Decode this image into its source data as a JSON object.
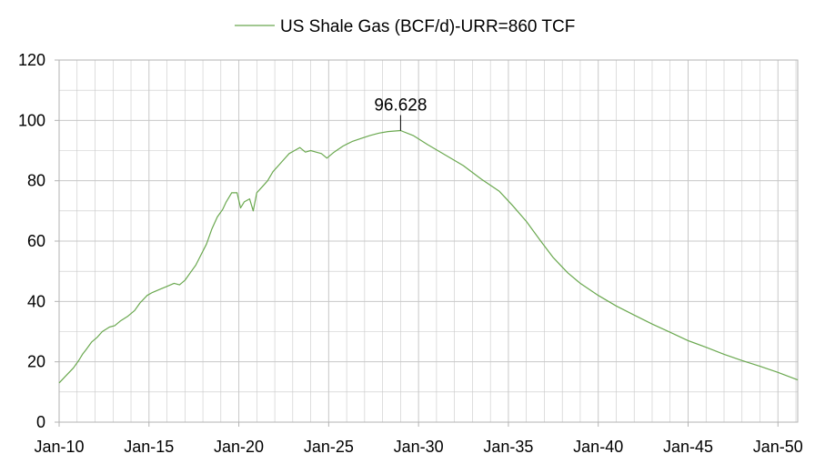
{
  "chart_data": {
    "type": "line",
    "title": "",
    "xlabel": "",
    "ylabel": "",
    "legend": {
      "position": "top-center",
      "label": "US Shale Gas (BCF/d)-URR=860 TCF"
    },
    "grid": true,
    "colors": {
      "series": "#6aa84f",
      "grid": "#c8c8c8",
      "axis": "#b3b3b3"
    },
    "x_ticks": [
      "Jan-10",
      "Jan-15",
      "Jan-20",
      "Jan-25",
      "Jan-30",
      "Jan-35",
      "Jan-40",
      "Jan-45",
      "Jan-50"
    ],
    "x_tick_years": [
      2010,
      2015,
      2020,
      2025,
      2030,
      2035,
      2040,
      2045,
      2050
    ],
    "xlim": [
      2010,
      2051.1
    ],
    "y_ticks": [
      "0",
      "20",
      "40",
      "60",
      "80",
      "100",
      "120"
    ],
    "ylim": [
      0,
      120
    ],
    "peak_annotation": {
      "label": "96.628",
      "x": 2029.0,
      "y": 96.628
    },
    "series": [
      {
        "name": "US Shale Gas (BCF/d)-URR=860 TCF",
        "points": [
          [
            2010.0,
            13.0
          ],
          [
            2010.4,
            15.5
          ],
          [
            2010.8,
            18.0
          ],
          [
            2011.1,
            20.5
          ],
          [
            2011.3,
            22.5
          ],
          [
            2011.5,
            24.0
          ],
          [
            2011.8,
            26.5
          ],
          [
            2012.1,
            28.0
          ],
          [
            2012.4,
            30.0
          ],
          [
            2012.8,
            31.5
          ],
          [
            2013.1,
            32.0
          ],
          [
            2013.4,
            33.5
          ],
          [
            2013.8,
            35.0
          ],
          [
            2014.2,
            37.0
          ],
          [
            2014.5,
            39.5
          ],
          [
            2014.9,
            42.0
          ],
          [
            2015.2,
            43.0
          ],
          [
            2015.6,
            44.0
          ],
          [
            2016.0,
            45.0
          ],
          [
            2016.4,
            46.0
          ],
          [
            2016.7,
            45.5
          ],
          [
            2017.0,
            47.0
          ],
          [
            2017.3,
            49.5
          ],
          [
            2017.6,
            52.0
          ],
          [
            2017.9,
            55.5
          ],
          [
            2018.2,
            59.0
          ],
          [
            2018.5,
            64.0
          ],
          [
            2018.8,
            68.0
          ],
          [
            2019.1,
            70.5
          ],
          [
            2019.3,
            73.0
          ],
          [
            2019.6,
            76.0
          ],
          [
            2019.9,
            76.0
          ],
          [
            2020.1,
            71.0
          ],
          [
            2020.3,
            73.0
          ],
          [
            2020.6,
            74.0
          ],
          [
            2020.8,
            70.0
          ],
          [
            2021.0,
            76.0
          ],
          [
            2021.3,
            78.0
          ],
          [
            2021.6,
            80.0
          ],
          [
            2021.9,
            83.0
          ],
          [
            2022.2,
            85.0
          ],
          [
            2022.5,
            87.0
          ],
          [
            2022.8,
            89.0
          ],
          [
            2023.1,
            90.0
          ],
          [
            2023.4,
            91.0
          ],
          [
            2023.7,
            89.5
          ],
          [
            2024.0,
            90.0
          ],
          [
            2024.3,
            89.5
          ],
          [
            2024.6,
            89.0
          ],
          [
            2024.9,
            87.5
          ],
          [
            2025.3,
            89.5
          ],
          [
            2025.8,
            91.5
          ],
          [
            2026.3,
            93.0
          ],
          [
            2026.8,
            94.0
          ],
          [
            2027.3,
            95.0
          ],
          [
            2027.8,
            95.8
          ],
          [
            2028.3,
            96.3
          ],
          [
            2029.0,
            96.628
          ],
          [
            2029.7,
            95.0
          ],
          [
            2030.5,
            92.0
          ],
          [
            2031.5,
            88.5
          ],
          [
            2032.5,
            85.0
          ],
          [
            2033.5,
            80.5
          ],
          [
            2034.5,
            76.5
          ],
          [
            2035.2,
            72.0
          ],
          [
            2036.0,
            66.5
          ],
          [
            2036.8,
            60.0
          ],
          [
            2037.5,
            54.5
          ],
          [
            2038.3,
            49.5
          ],
          [
            2039.0,
            46.0
          ],
          [
            2040.0,
            42.0
          ],
          [
            2041.0,
            38.5
          ],
          [
            2042.0,
            35.5
          ],
          [
            2043.0,
            32.5
          ],
          [
            2044.0,
            29.8
          ],
          [
            2045.0,
            27.0
          ],
          [
            2046.0,
            24.8
          ],
          [
            2047.0,
            22.5
          ],
          [
            2048.0,
            20.4
          ],
          [
            2049.0,
            18.5
          ],
          [
            2050.0,
            16.5
          ],
          [
            2051.1,
            14.0
          ]
        ]
      }
    ]
  }
}
